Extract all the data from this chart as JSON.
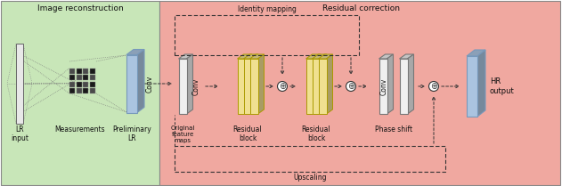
{
  "title_left": "Image reconstruction",
  "title_right": "Residual correction",
  "bg_left": "#c8e6b8",
  "bg_right": "#f0a8a0",
  "label_lr_input": "LR\ninput",
  "label_measurements": "Measurements",
  "label_preliminary_lr": "Preliminary\nLR",
  "label_conv1": "Conv",
  "label_conv2": "Conv",
  "label_conv3": "Conv",
  "label_original": "Original\nfeature\nmaps",
  "label_residual1": "Residual\nblock",
  "label_residual2": "Residual\nblock",
  "label_phase_shift": "Phase shift",
  "label_hr_output": "HR\noutput",
  "label_identity": "Identity mapping",
  "label_upscaling": "Upscaling",
  "blue_color": "#aac4e0",
  "yellow_color": "#f0e090",
  "white_panel": "#f0f0f0",
  "arrow_color": "#333333",
  "text_color": "#111111",
  "border_color": "#888888"
}
